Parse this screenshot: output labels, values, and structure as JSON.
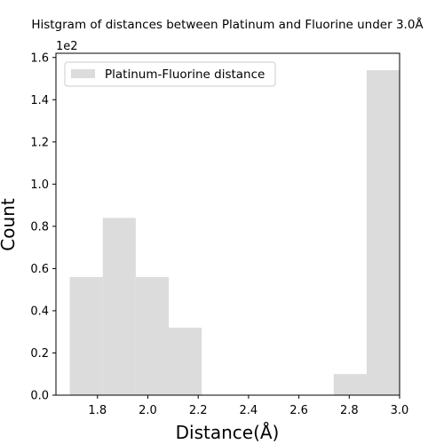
{
  "chart_data": {
    "type": "bar",
    "title": "Histgram of distances between Platinum and Fluorine under 3.0Å",
    "xlabel": "Distance(Å)",
    "ylabel": "Count",
    "y_scale_label": "1e2",
    "xlim": [
      1.635,
      3.0
    ],
    "ylim": [
      0,
      1.62
    ],
    "x_ticks": [
      1.8,
      2.0,
      2.2,
      2.4,
      2.6,
      2.8,
      3.0
    ],
    "x_tick_labels": [
      "1.8",
      "2.0",
      "2.2",
      "2.4",
      "2.6",
      "2.8",
      "3.0"
    ],
    "y_ticks": [
      0.0,
      0.2,
      0.4,
      0.6,
      0.8,
      1.0,
      1.2,
      1.4,
      1.6
    ],
    "y_tick_labels": [
      "0.0",
      "0.2",
      "0.4",
      "0.6",
      "0.8",
      "1.0",
      "1.2",
      "1.4",
      "1.6"
    ],
    "grid": false,
    "legend_position": "upper-left",
    "series": [
      {
        "name": "Platinum-Fluorine distance",
        "color": "#dcdcdc",
        "bins": [
          {
            "x0": 1.69,
            "x1": 1.821,
            "value": 0.56
          },
          {
            "x0": 1.821,
            "x1": 1.952,
            "value": 0.84
          },
          {
            "x0": 1.952,
            "x1": 2.083,
            "value": 0.56
          },
          {
            "x0": 2.083,
            "x1": 2.214,
            "value": 0.32
          },
          {
            "x0": 2.214,
            "x1": 2.345,
            "value": 0
          },
          {
            "x0": 2.345,
            "x1": 2.476,
            "value": 0
          },
          {
            "x0": 2.476,
            "x1": 2.607,
            "value": 0
          },
          {
            "x0": 2.607,
            "x1": 2.738,
            "value": 0
          },
          {
            "x0": 2.738,
            "x1": 2.869,
            "value": 0.1
          },
          {
            "x0": 2.869,
            "x1": 3.0,
            "value": 1.54
          }
        ]
      }
    ]
  }
}
